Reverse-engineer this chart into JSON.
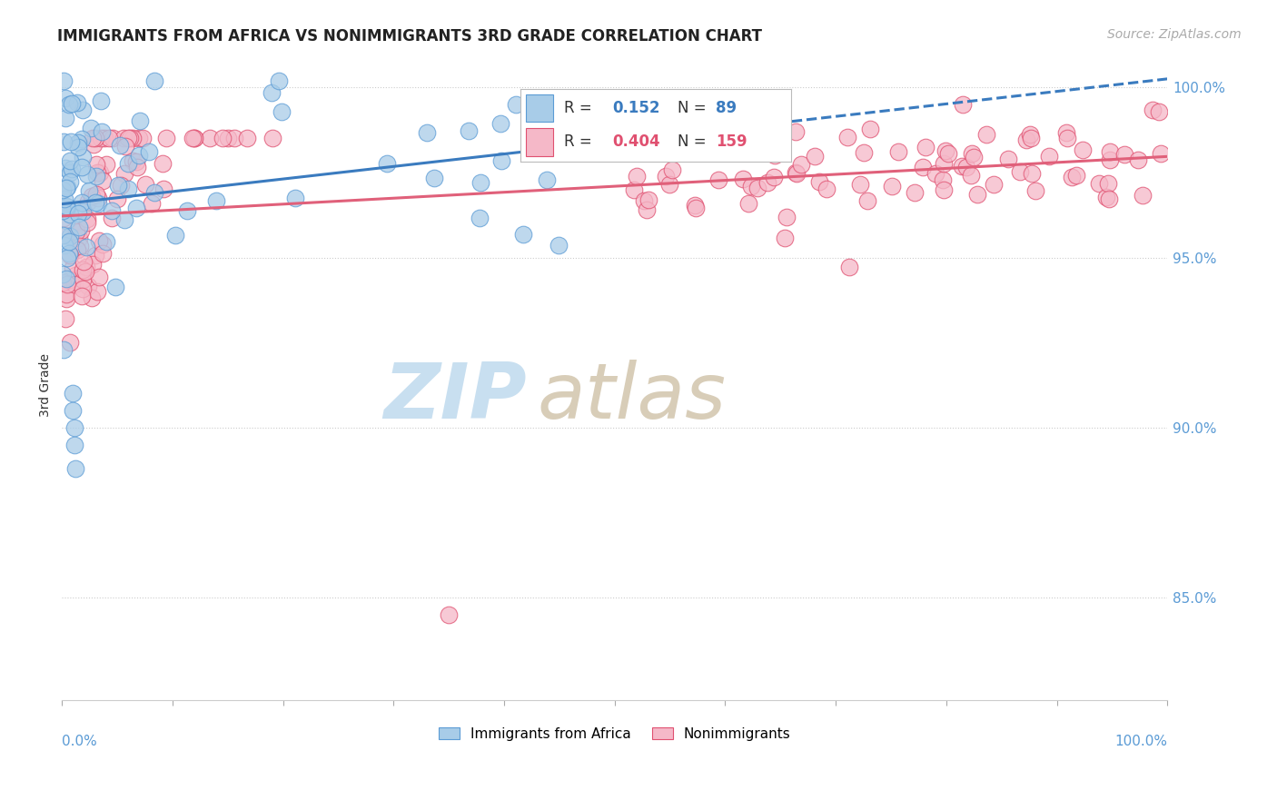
{
  "title": "IMMIGRANTS FROM AFRICA VS NONIMMIGRANTS 3RD GRADE CORRELATION CHART",
  "source": "Source: ZipAtlas.com",
  "blue_R": 0.152,
  "blue_N": 89,
  "pink_R": 0.404,
  "pink_N": 159,
  "blue_color": "#a8cce8",
  "pink_color": "#f5b8c8",
  "blue_edge_color": "#5b9bd5",
  "pink_edge_color": "#e05070",
  "blue_line_color": "#3a7bbf",
  "pink_line_color": "#e0607a",
  "blue_label": "Immigrants from Africa",
  "pink_label": "Nonimmigrants",
  "xlim": [
    0.0,
    1.0
  ],
  "ylim": [
    0.82,
    1.005
  ],
  "yticks": [
    0.85,
    0.9,
    0.95,
    1.0
  ],
  "ytick_labels": [
    "85.0%",
    "90.0%",
    "95.0%",
    "100.0%"
  ],
  "tick_color": "#5b9bd5",
  "background_color": "#ffffff",
  "title_fontsize": 12,
  "source_fontsize": 10,
  "watermark_zip_color": "#c8dff0",
  "watermark_atlas_color": "#d8cdb8"
}
